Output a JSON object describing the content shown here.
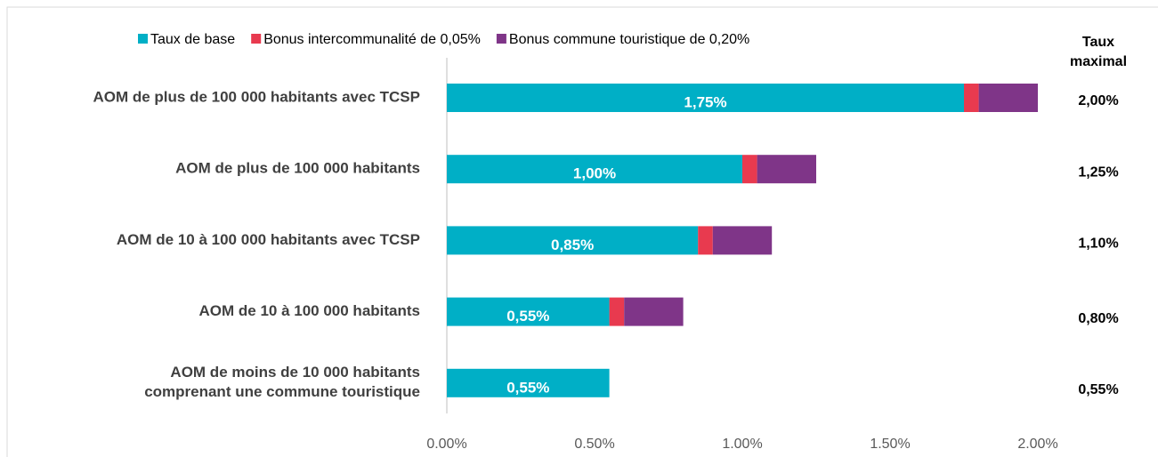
{
  "chart_data": {
    "type": "stacked-bar",
    "orientation": "horizontal",
    "categories": [
      "AOM de plus de 100 000 habitants avec TCSP",
      "AOM de plus de 100 000 habitants",
      "AOM de 10 à 100 000 habitants avec TCSP",
      "AOM de 10 à 100 000 habitants",
      "AOM de moins de 10 000 habitants\ncomprenant une commune touristique"
    ],
    "series": [
      {
        "name": "Taux de base",
        "color": "#00afc6",
        "values": [
          1.75,
          1.0,
          0.85,
          0.55,
          0.55
        ],
        "value_labels": [
          "1,75%",
          "1,00%",
          "0,85%",
          "0,55%",
          "0,55%"
        ]
      },
      {
        "name": "Bonus intercommunalité de 0,05%",
        "color": "#e83a4f",
        "values": [
          0.05,
          0.05,
          0.05,
          0.05,
          null
        ]
      },
      {
        "name": "Bonus commune touristique de 0,20%",
        "color": "#7f3588",
        "values": [
          0.2,
          0.2,
          0.2,
          0.2,
          null
        ]
      }
    ],
    "totals": {
      "title": [
        "Taux",
        "maximal"
      ],
      "values": [
        2.0,
        1.25,
        1.1,
        0.8,
        0.55
      ],
      "value_labels": [
        "2,00%",
        "1,25%",
        "1,10%",
        "0,80%",
        "0,55%"
      ]
    },
    "xlim": [
      0,
      2
    ],
    "xticks": [
      {
        "value": 0,
        "label": "0.00%"
      },
      {
        "value": 0.5,
        "label": "0.50%"
      },
      {
        "value": 1,
        "label": "1.00%"
      },
      {
        "value": 1.5,
        "label": "1.50%"
      },
      {
        "value": 2,
        "label": "2.00%"
      }
    ],
    "legend": "top",
    "grid": false
  }
}
